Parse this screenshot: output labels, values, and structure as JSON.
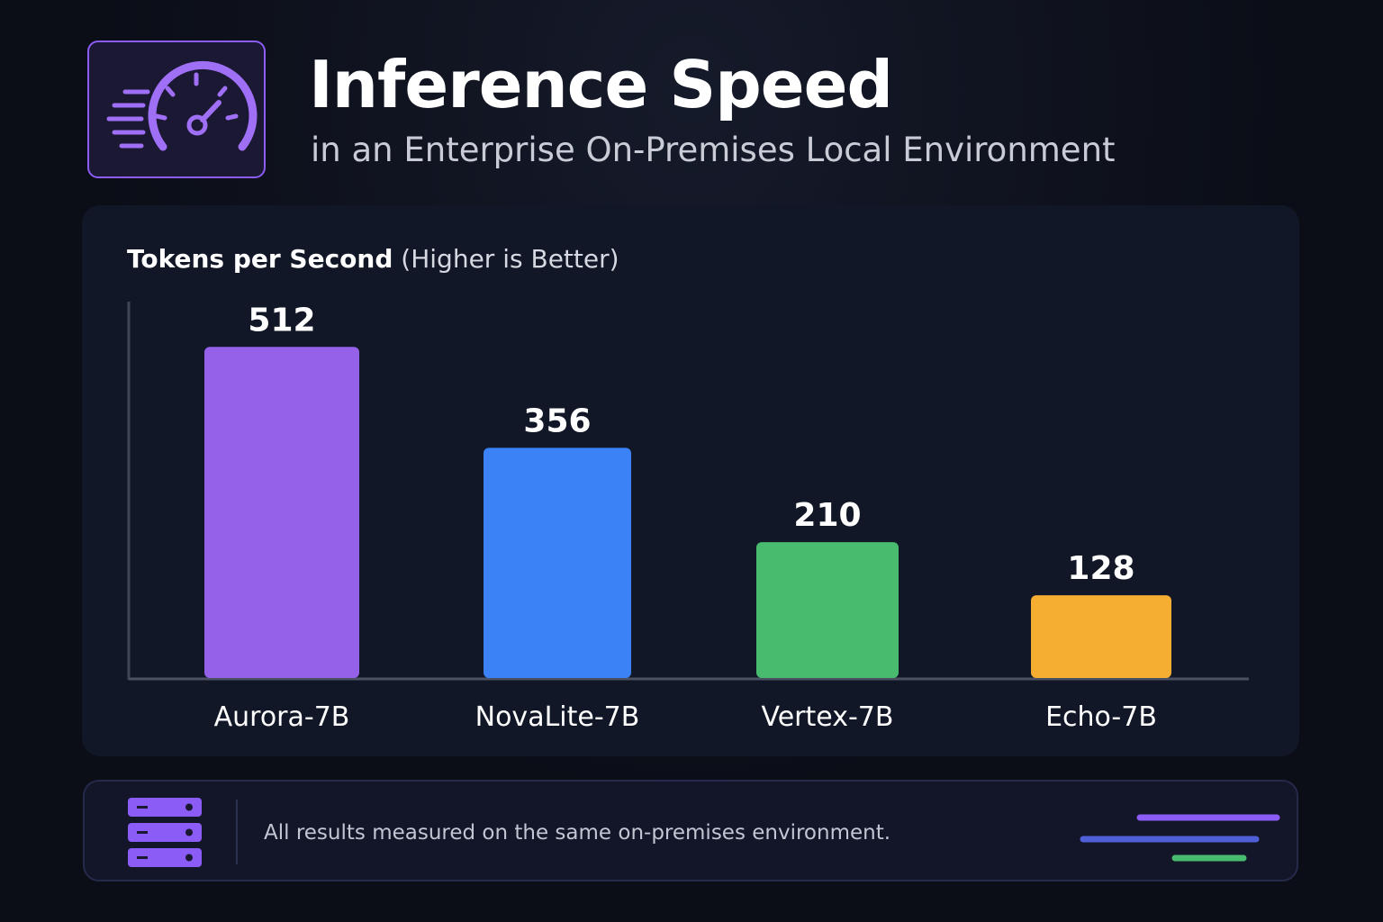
{
  "header": {
    "icon": "speedometer-icon",
    "title": "Inference Speed",
    "subtitle": "in an Enterprise On-Premises Local Environment"
  },
  "chart_title": {
    "bold": "Tokens per Second",
    "light": "(Higher is Better)"
  },
  "chart_data": {
    "type": "bar",
    "title": "Tokens per Second (Higher is Better)",
    "categories": [
      "Aurora-7B",
      "NovaLite-7B",
      "Vertex-7B",
      "Echo-7B"
    ],
    "values": [
      512,
      356,
      210,
      128
    ],
    "colors": [
      "#9461e8",
      "#3b82f6",
      "#48bb6e",
      "#f5ad32"
    ],
    "xlabel": "",
    "ylabel": "",
    "ylim": [
      0,
      582
    ],
    "grid": false,
    "legend": "none",
    "data_labels": true
  },
  "footer": {
    "icon": "server-icon",
    "note": "All results measured on the same on-premises environment.",
    "decoration_colors": [
      "#8b5cf6",
      "#4f5fd8",
      "#48bb6e"
    ]
  },
  "colors": {
    "background": "#0b0e17",
    "card": "#111726",
    "accent": "#8b5cf6"
  }
}
